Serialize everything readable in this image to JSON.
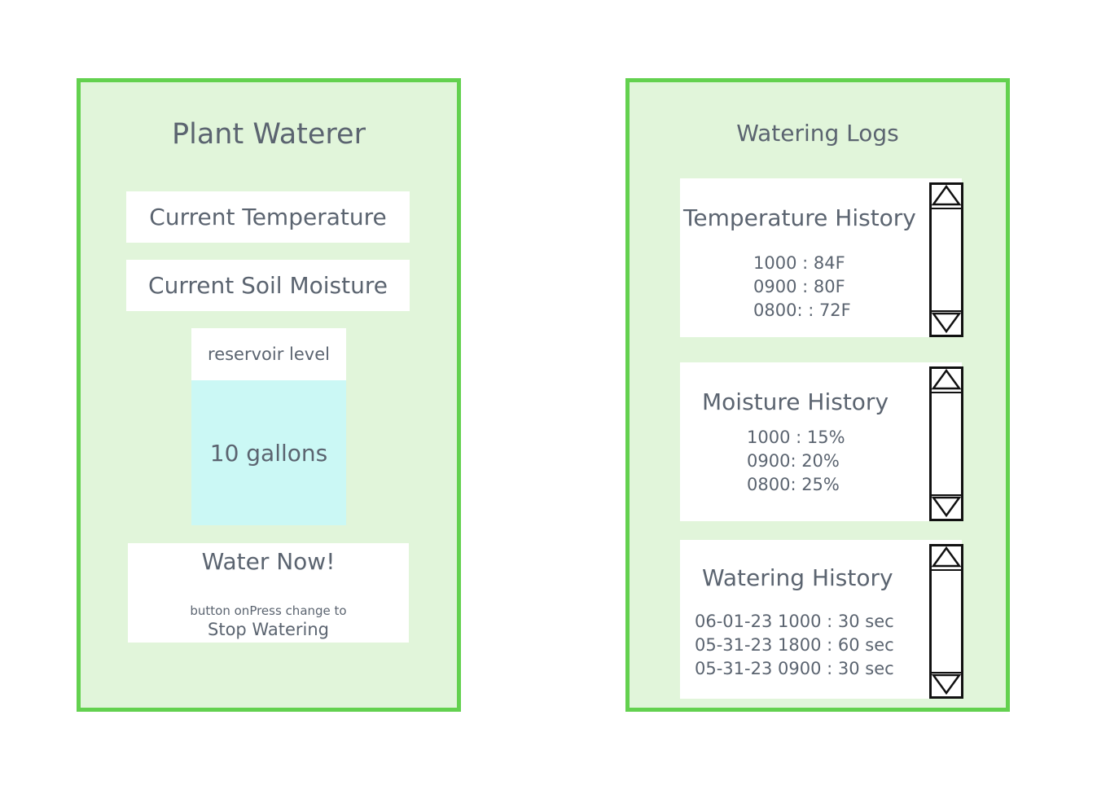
{
  "left": {
    "title": "Plant Waterer",
    "current_temperature": "Current Temperature",
    "current_soil_moisture": "Current Soil Moisture",
    "reservoir_label": "reservoir level",
    "reservoir_value": "10 gallons",
    "water_button_label": "Water Now!",
    "water_button_note": "button onPress change to",
    "water_button_alt_label": "Stop Watering"
  },
  "right": {
    "title": "Watering Logs",
    "temperature": {
      "heading": "Temperature History",
      "entries": [
        "1000 : 84F",
        "0900 : 80F",
        "0800: : 72F"
      ]
    },
    "moisture": {
      "heading": "Moisture History",
      "entries": [
        "1000 : 15%",
        "0900: 20%",
        "0800: 25%"
      ]
    },
    "watering": {
      "heading": "Watering History",
      "entries": [
        "06-01-23 1000 : 30 sec",
        "05-31-23 1800 : 60 sec",
        "05-31-23 0900 : 30 sec"
      ]
    }
  },
  "colors": {
    "panel_border": "#63d14f",
    "panel_fill": "#e1f5da",
    "reservoir_fill": "#cbf8f5",
    "text": "#5b6470"
  },
  "icons": {
    "scroll_up": "triangle-up-icon",
    "scroll_down": "triangle-down-icon"
  }
}
